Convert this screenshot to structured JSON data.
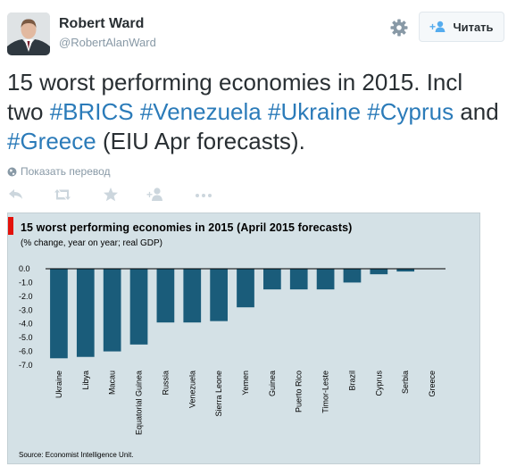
{
  "header": {
    "name": "Robert Ward",
    "handle": "@RobertAlanWard",
    "follow_label": "Читать"
  },
  "tweet": {
    "text_parts": [
      {
        "text": "15 worst performing economies in 2015. Incl two ",
        "tag": false
      },
      {
        "text": "#BRICS",
        "tag": true
      },
      {
        "text": " ",
        "tag": false
      },
      {
        "text": "#Venezuela",
        "tag": true
      },
      {
        "text": " ",
        "tag": false
      },
      {
        "text": "#Ukraine",
        "tag": true
      },
      {
        "text": " ",
        "tag": false
      },
      {
        "text": "#Cyprus",
        "tag": true
      },
      {
        "text": " and ",
        "tag": false
      },
      {
        "text": "#Greece",
        "tag": true
      },
      {
        "text": " (EIU Apr forecasts).",
        "tag": false
      }
    ],
    "translate_label": "Показать перевод"
  },
  "icons": {
    "settings": "gear-icon",
    "follow": "add-user-icon",
    "translate": "globe-icon",
    "reply": "reply-icon",
    "retweet": "retweet-icon",
    "favorite": "star-icon",
    "follow_action": "add-user-icon",
    "more": "more-icon"
  },
  "colors": {
    "hashtag": "#2b7bb9",
    "bar": "#1a5c7a",
    "chart_bg": "#d4e1e6",
    "accent_red": "#e3120b"
  },
  "chart": {
    "title": "15 worst performing  economies  in  2015  (April 2015 forecasts)",
    "subtitle": "(% change, year on year; real GDP)",
    "source": "Source: Economist Intelligence Unit."
  },
  "chart_data": {
    "type": "bar",
    "categories": [
      "Ukraine",
      "Libya",
      "Macau",
      "Equatorial Guinea",
      "Russia",
      "Venezuela",
      "Sierra Leone",
      "Yemen",
      "Guinea",
      "Puerto Rico",
      "Timor-Leste",
      "Brazil",
      "Cyprus",
      "Serbia",
      "Greece"
    ],
    "values": [
      -6.5,
      -6.4,
      -6.0,
      -5.5,
      -3.9,
      -3.9,
      -3.8,
      -2.8,
      -1.5,
      -1.5,
      -1.5,
      -1.0,
      -0.4,
      -0.2,
      0.0
    ],
    "title": "15 worst performing  economies  in  2015  (April 2015 forecasts)",
    "ylabel": "(% change, year on year; real GDP)",
    "yticks": [
      "0.0",
      "-1.0",
      "-2.0",
      "-3.0",
      "-4.0",
      "-5.0",
      "-6.0",
      "-7.0"
    ],
    "ylim": [
      -7,
      0
    ],
    "grid": false,
    "legend": "none"
  }
}
